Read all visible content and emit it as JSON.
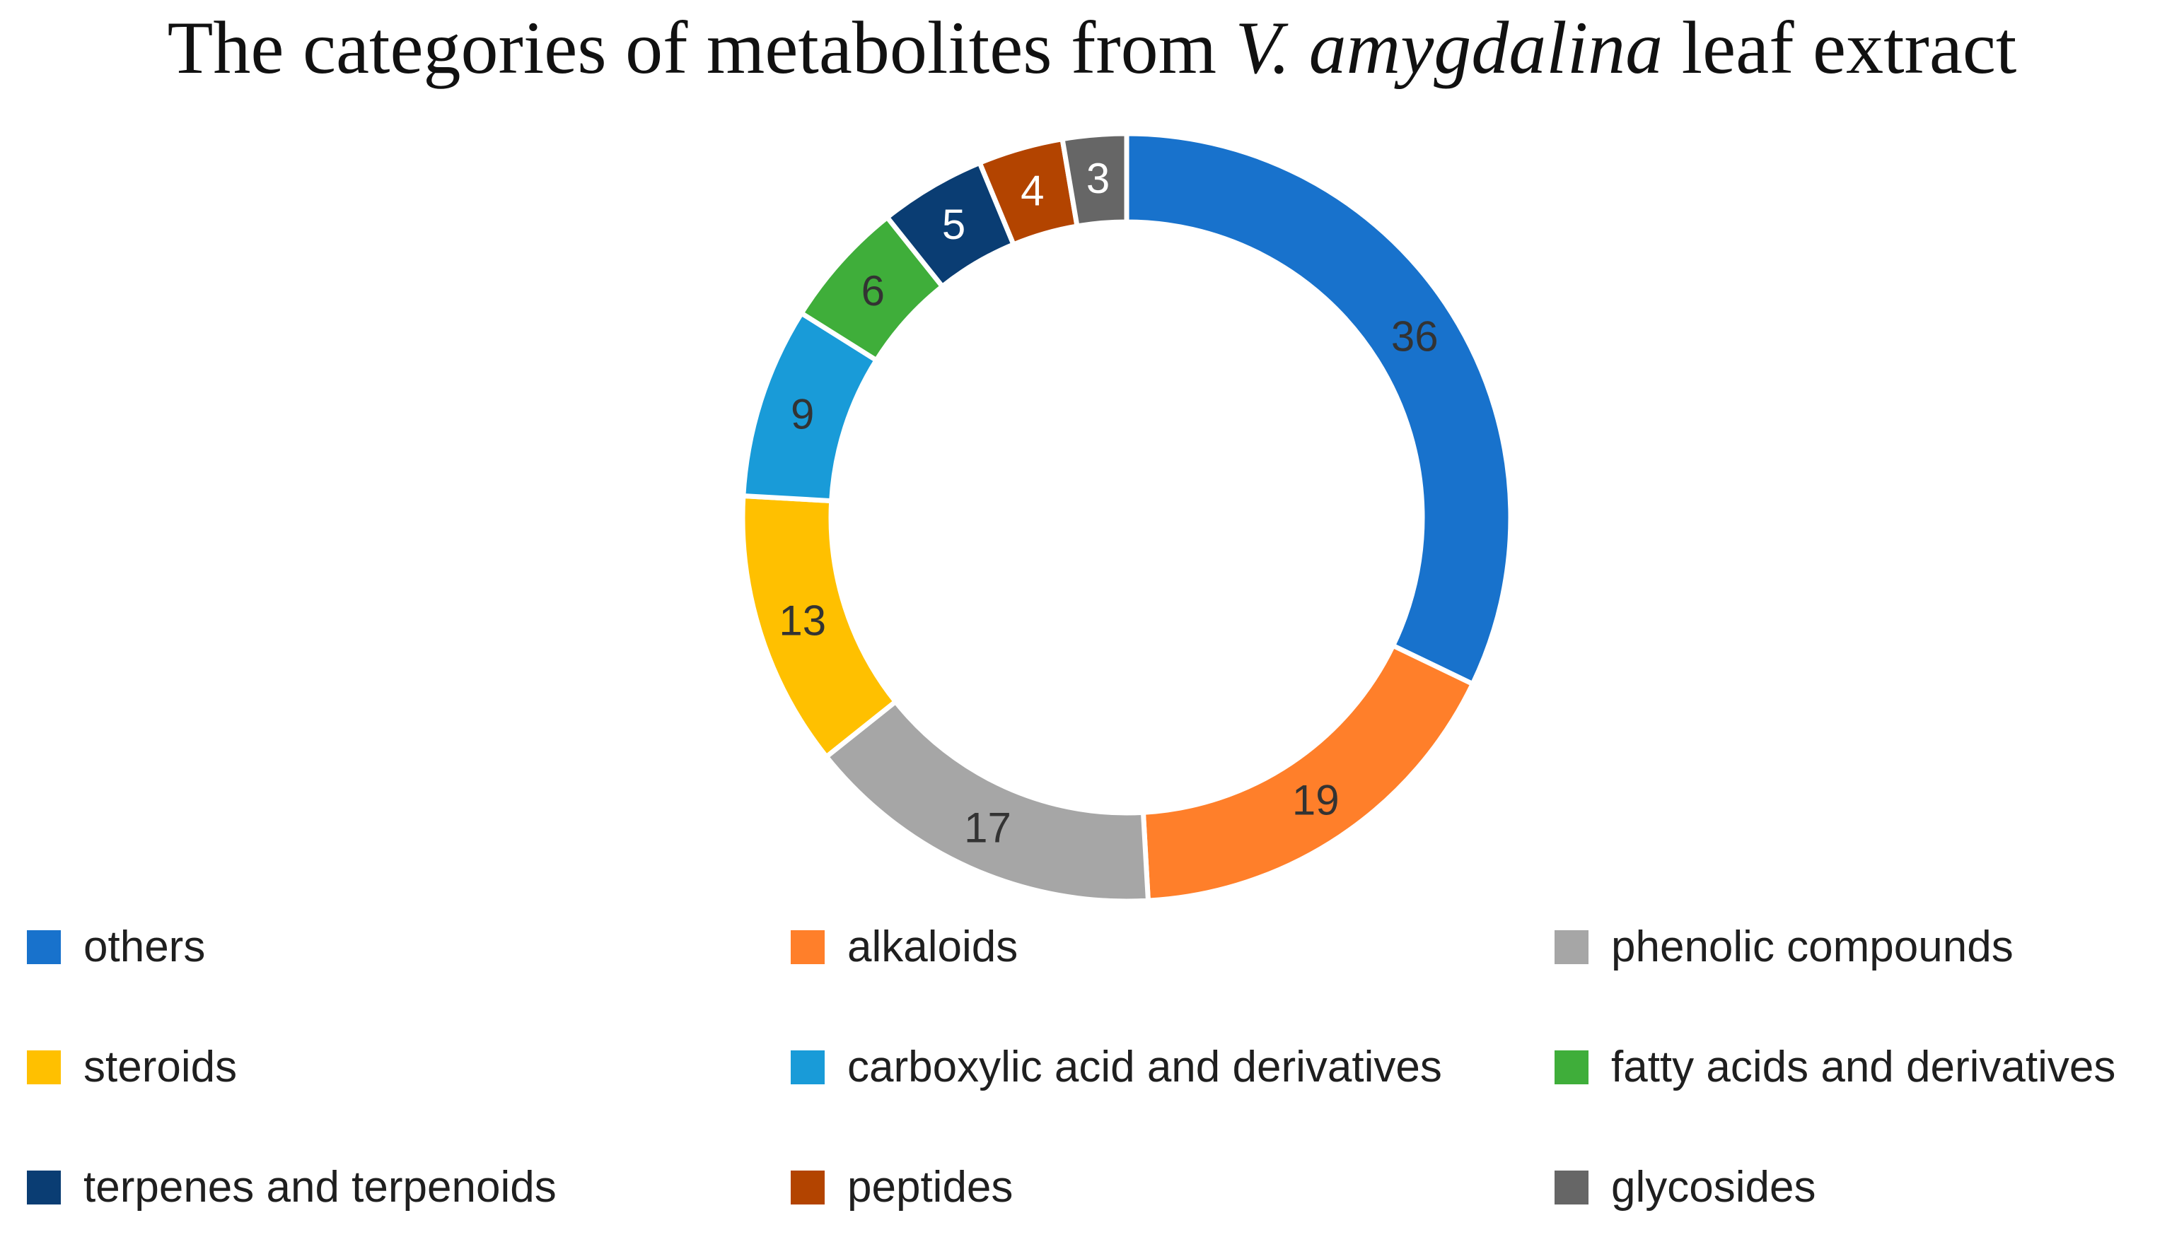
{
  "title": {
    "prefix": "The categories of metabolites from ",
    "species": "V. amygdalina",
    "suffix": " leaf extract"
  },
  "chart_data": {
    "type": "pie",
    "variant": "donut",
    "title": "The categories of metabolites from V. amygdalina leaf extract",
    "legend_position": "bottom",
    "categories": [
      "others",
      "alkaloids",
      "phenolic compounds",
      "steroids",
      "carboxylic acid and derivatives",
      "fatty acids and derivatives",
      "terpenes and terpenoids",
      "peptides",
      "glycosides"
    ],
    "values": [
      36,
      19,
      17,
      13,
      9,
      6,
      5,
      4,
      3
    ],
    "colors": [
      "#1872CC",
      "#FF7F2A",
      "#A6A6A6",
      "#FFC000",
      "#199BD8",
      "#3FAE3A",
      "#0A3D73",
      "#B34400",
      "#666666"
    ],
    "label_colors": [
      "#333333",
      "#333333",
      "#333333",
      "#333333",
      "#333333",
      "#333333",
      "#ffffff",
      "#ffffff",
      "#ffffff"
    ]
  }
}
